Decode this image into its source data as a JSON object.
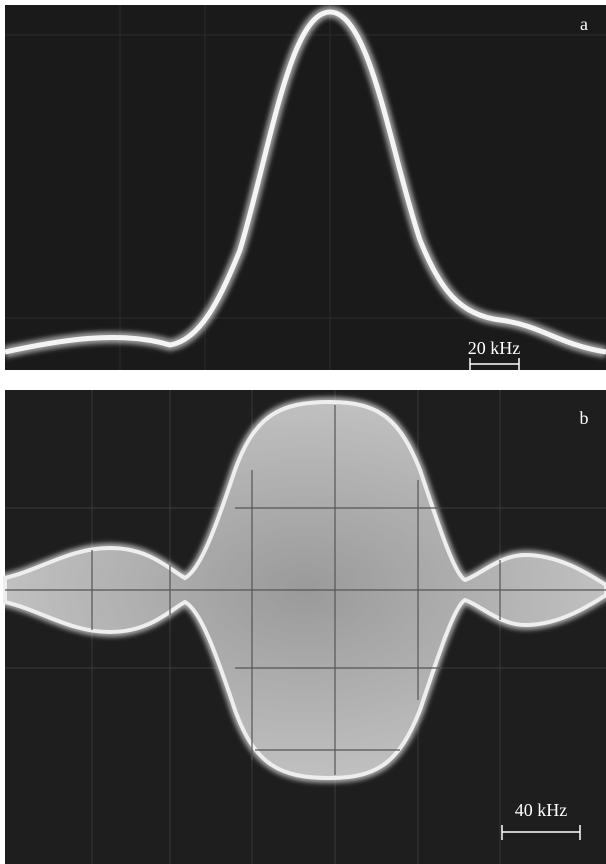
{
  "panels": [
    {
      "label": "a",
      "scale": "20 kHz"
    },
    {
      "label": "b",
      "scale": "40 kHz"
    }
  ]
}
